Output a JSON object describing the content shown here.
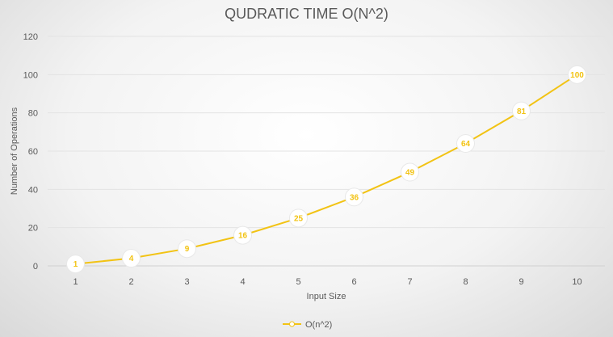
{
  "chart_data": {
    "type": "line",
    "title": "QUDRATIC TIME O(N^2)",
    "xlabel": "Input Size",
    "ylabel": "Number of Operations",
    "categories": [
      "1",
      "2",
      "3",
      "4",
      "5",
      "6",
      "7",
      "8",
      "9",
      "10"
    ],
    "series": [
      {
        "name": "O(n^2)",
        "values": [
          1,
          4,
          9,
          16,
          25,
          36,
          49,
          64,
          81,
          100
        ],
        "color": "#f2c314"
      }
    ],
    "ylim": [
      0,
      120
    ],
    "yticks": [
      "0",
      "20",
      "40",
      "60",
      "80",
      "100",
      "120"
    ],
    "grid": true,
    "legend": "bottom"
  }
}
